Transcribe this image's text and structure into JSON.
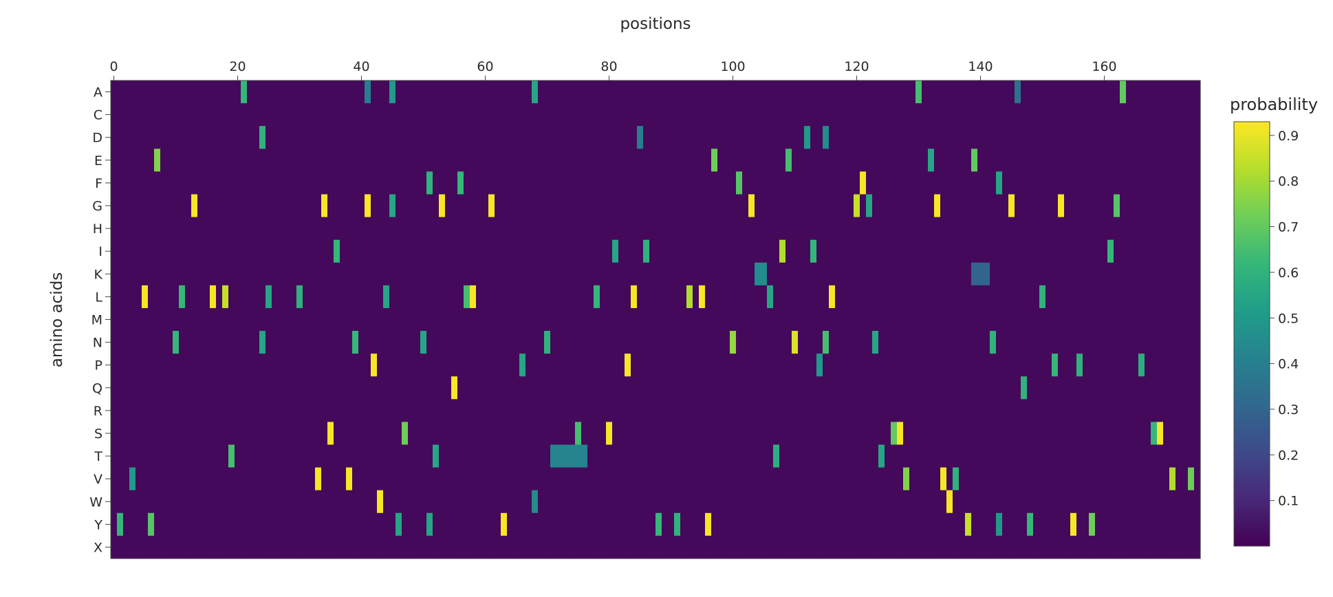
{
  "chart_data": {
    "type": "heatmap",
    "title": "",
    "xlabel": "positions",
    "ylabel": "amino acids",
    "colorbar_title": "probability",
    "colorscale": "viridis",
    "xlim": [
      0,
      176
    ],
    "x_ticks": [
      "0",
      "20",
      "40",
      "60",
      "80",
      "100",
      "120",
      "140",
      "160"
    ],
    "categories_y": [
      "A",
      "C",
      "D",
      "E",
      "F",
      "G",
      "H",
      "I",
      "K",
      "L",
      "M",
      "N",
      "P",
      "Q",
      "R",
      "S",
      "T",
      "V",
      "W",
      "Y",
      "X"
    ],
    "value_range": [
      0,
      0.93
    ],
    "colorbar_ticks": [
      "0.1",
      "0.2",
      "0.3",
      "0.4",
      "0.5",
      "0.6",
      "0.7",
      "0.8",
      "0.9"
    ],
    "n_positions": 176,
    "background_value": 0.02,
    "highlights": [
      {
        "aa": "A",
        "positions": [
          21
        ],
        "value": 0.62
      },
      {
        "aa": "A",
        "positions": [
          41
        ],
        "value": 0.4
      },
      {
        "aa": "A",
        "positions": [
          45
        ],
        "value": 0.5
      },
      {
        "aa": "A",
        "positions": [
          68
        ],
        "value": 0.55
      },
      {
        "aa": "A",
        "positions": [
          130
        ],
        "value": 0.65
      },
      {
        "aa": "A",
        "positions": [
          163
        ],
        "value": 0.7
      },
      {
        "aa": "A",
        "positions": [
          146
        ],
        "value": 0.35
      },
      {
        "aa": "D",
        "positions": [
          24
        ],
        "value": 0.6
      },
      {
        "aa": "D",
        "positions": [
          85
        ],
        "value": 0.4
      },
      {
        "aa": "D",
        "positions": [
          112
        ],
        "value": 0.5
      },
      {
        "aa": "D",
        "positions": [
          115
        ],
        "value": 0.45
      },
      {
        "aa": "E",
        "positions": [
          7
        ],
        "value": 0.75
      },
      {
        "aa": "E",
        "positions": [
          97
        ],
        "value": 0.72
      },
      {
        "aa": "E",
        "positions": [
          109
        ],
        "value": 0.65
      },
      {
        "aa": "E",
        "positions": [
          132
        ],
        "value": 0.55
      },
      {
        "aa": "E",
        "positions": [
          139
        ],
        "value": 0.7
      },
      {
        "aa": "F",
        "positions": [
          51
        ],
        "value": 0.6
      },
      {
        "aa": "F",
        "positions": [
          56
        ],
        "value": 0.62
      },
      {
        "aa": "F",
        "positions": [
          101
        ],
        "value": 0.68
      },
      {
        "aa": "F",
        "positions": [
          121
        ],
        "value": 0.92
      },
      {
        "aa": "F",
        "positions": [
          143
        ],
        "value": 0.55
      },
      {
        "aa": "G",
        "positions": [
          13
        ],
        "value": 0.92
      },
      {
        "aa": "G",
        "positions": [
          34
        ],
        "value": 0.92
      },
      {
        "aa": "G",
        "positions": [
          41
        ],
        "value": 0.93
      },
      {
        "aa": "G",
        "positions": [
          45
        ],
        "value": 0.55
      },
      {
        "aa": "G",
        "positions": [
          53
        ],
        "value": 0.92
      },
      {
        "aa": "G",
        "positions": [
          61
        ],
        "value": 0.92
      },
      {
        "aa": "G",
        "positions": [
          103
        ],
        "value": 0.92
      },
      {
        "aa": "G",
        "positions": [
          120
        ],
        "value": 0.85
      },
      {
        "aa": "G",
        "positions": [
          122
        ],
        "value": 0.55
      },
      {
        "aa": "G",
        "positions": [
          133
        ],
        "value": 0.92
      },
      {
        "aa": "G",
        "positions": [
          145
        ],
        "value": 0.92
      },
      {
        "aa": "G",
        "positions": [
          153
        ],
        "value": 0.92
      },
      {
        "aa": "G",
        "positions": [
          162
        ],
        "value": 0.68
      },
      {
        "aa": "I",
        "positions": [
          36
        ],
        "value": 0.62
      },
      {
        "aa": "I",
        "positions": [
          81
        ],
        "value": 0.55
      },
      {
        "aa": "I",
        "positions": [
          86
        ],
        "value": 0.6
      },
      {
        "aa": "I",
        "positions": [
          108
        ],
        "value": 0.82
      },
      {
        "aa": "I",
        "positions": [
          113
        ],
        "value": 0.62
      },
      {
        "aa": "I",
        "positions": [
          161
        ],
        "value": 0.62
      },
      {
        "aa": "L",
        "positions": [
          5
        ],
        "value": 0.92
      },
      {
        "aa": "L",
        "positions": [
          11
        ],
        "value": 0.62
      },
      {
        "aa": "L",
        "positions": [
          16
        ],
        "value": 0.92
      },
      {
        "aa": "L",
        "positions": [
          18
        ],
        "value": 0.85
      },
      {
        "aa": "L",
        "positions": [
          25
        ],
        "value": 0.55
      },
      {
        "aa": "L",
        "positions": [
          30
        ],
        "value": 0.6
      },
      {
        "aa": "L",
        "positions": [
          44
        ],
        "value": 0.55
      },
      {
        "aa": "L",
        "positions": [
          57
        ],
        "value": 0.65
      },
      {
        "aa": "L",
        "positions": [
          58
        ],
        "value": 0.92
      },
      {
        "aa": "L",
        "positions": [
          78
        ],
        "value": 0.62
      },
      {
        "aa": "L",
        "positions": [
          84
        ],
        "value": 0.92
      },
      {
        "aa": "L",
        "positions": [
          93
        ],
        "value": 0.82
      },
      {
        "aa": "L",
        "positions": [
          95
        ],
        "value": 0.92
      },
      {
        "aa": "L",
        "positions": [
          106
        ],
        "value": 0.55
      },
      {
        "aa": "L",
        "positions": [
          116
        ],
        "value": 0.92
      },
      {
        "aa": "L",
        "positions": [
          150
        ],
        "value": 0.6
      },
      {
        "aa": "N",
        "positions": [
          10
        ],
        "value": 0.62
      },
      {
        "aa": "N",
        "positions": [
          24
        ],
        "value": 0.55
      },
      {
        "aa": "N",
        "positions": [
          39
        ],
        "value": 0.62
      },
      {
        "aa": "N",
        "positions": [
          50
        ],
        "value": 0.55
      },
      {
        "aa": "N",
        "positions": [
          70
        ],
        "value": 0.6
      },
      {
        "aa": "N",
        "positions": [
          100
        ],
        "value": 0.78
      },
      {
        "aa": "N",
        "positions": [
          110
        ],
        "value": 0.88
      },
      {
        "aa": "N",
        "positions": [
          115
        ],
        "value": 0.65
      },
      {
        "aa": "N",
        "positions": [
          123
        ],
        "value": 0.55
      },
      {
        "aa": "N",
        "positions": [
          142
        ],
        "value": 0.6
      },
      {
        "aa": "P",
        "positions": [
          42
        ],
        "value": 0.92
      },
      {
        "aa": "P",
        "positions": [
          66
        ],
        "value": 0.55
      },
      {
        "aa": "P",
        "positions": [
          83
        ],
        "value": 0.92
      },
      {
        "aa": "P",
        "positions": [
          114
        ],
        "value": 0.5
      },
      {
        "aa": "P",
        "positions": [
          152
        ],
        "value": 0.62
      },
      {
        "aa": "P",
        "positions": [
          156
        ],
        "value": 0.6
      },
      {
        "aa": "P",
        "positions": [
          166
        ],
        "value": 0.58
      },
      {
        "aa": "Q",
        "positions": [
          55
        ],
        "value": 0.92
      },
      {
        "aa": "Q",
        "positions": [
          147
        ],
        "value": 0.6
      },
      {
        "aa": "S",
        "positions": [
          35
        ],
        "value": 0.92
      },
      {
        "aa": "S",
        "positions": [
          47
        ],
        "value": 0.72
      },
      {
        "aa": "S",
        "positions": [
          75
        ],
        "value": 0.65
      },
      {
        "aa": "S",
        "positions": [
          80
        ],
        "value": 0.92
      },
      {
        "aa": "S",
        "positions": [
          126
        ],
        "value": 0.7
      },
      {
        "aa": "S",
        "positions": [
          127
        ],
        "value": 0.92
      },
      {
        "aa": "S",
        "positions": [
          168
        ],
        "value": 0.62
      },
      {
        "aa": "S",
        "positions": [
          169
        ],
        "value": 0.92
      },
      {
        "aa": "T",
        "positions": [
          19
        ],
        "value": 0.65
      },
      {
        "aa": "T",
        "positions": [
          52
        ],
        "value": 0.55
      },
      {
        "aa": "T",
        "positions": [
          107
        ],
        "value": 0.58
      },
      {
        "aa": "T",
        "positions": [
          124
        ],
        "value": 0.55
      },
      {
        "aa": "V",
        "positions": [
          3
        ],
        "value": 0.5
      },
      {
        "aa": "V",
        "positions": [
          33
        ],
        "value": 0.92
      },
      {
        "aa": "V",
        "positions": [
          38
        ],
        "value": 0.92
      },
      {
        "aa": "V",
        "positions": [
          128
        ],
        "value": 0.75
      },
      {
        "aa": "V",
        "positions": [
          134
        ],
        "value": 0.92
      },
      {
        "aa": "V",
        "positions": [
          136
        ],
        "value": 0.6
      },
      {
        "aa": "V",
        "positions": [
          171
        ],
        "value": 0.82
      },
      {
        "aa": "V",
        "positions": [
          174
        ],
        "value": 0.72
      },
      {
        "aa": "W",
        "positions": [
          43
        ],
        "value": 0.92
      },
      {
        "aa": "W",
        "positions": [
          68
        ],
        "value": 0.45
      },
      {
        "aa": "W",
        "positions": [
          135
        ],
        "value": 0.92
      },
      {
        "aa": "Y",
        "positions": [
          1
        ],
        "value": 0.62
      },
      {
        "aa": "Y",
        "positions": [
          6
        ],
        "value": 0.68
      },
      {
        "aa": "Y",
        "positions": [
          46
        ],
        "value": 0.55
      },
      {
        "aa": "Y",
        "positions": [
          51
        ],
        "value": 0.55
      },
      {
        "aa": "Y",
        "positions": [
          63
        ],
        "value": 0.92
      },
      {
        "aa": "Y",
        "positions": [
          88
        ],
        "value": 0.62
      },
      {
        "aa": "Y",
        "positions": [
          91
        ],
        "value": 0.6
      },
      {
        "aa": "Y",
        "positions": [
          96
        ],
        "value": 0.92
      },
      {
        "aa": "Y",
        "positions": [
          138
        ],
        "value": 0.85
      },
      {
        "aa": "Y",
        "positions": [
          143
        ],
        "value": 0.5
      },
      {
        "aa": "Y",
        "positions": [
          148
        ],
        "value": 0.62
      },
      {
        "aa": "Y",
        "positions": [
          155
        ],
        "value": 0.92
      },
      {
        "aa": "Y",
        "positions": [
          158
        ],
        "value": 0.72
      },
      {
        "aa": "T",
        "positions": [
          71,
          72,
          73,
          74,
          75,
          76
        ],
        "value": 0.42
      },
      {
        "aa": "K",
        "positions": [
          104,
          105
        ],
        "value": 0.45
      },
      {
        "aa": "K",
        "positions": [
          139,
          140,
          141
        ],
        "value": 0.3
      }
    ]
  }
}
